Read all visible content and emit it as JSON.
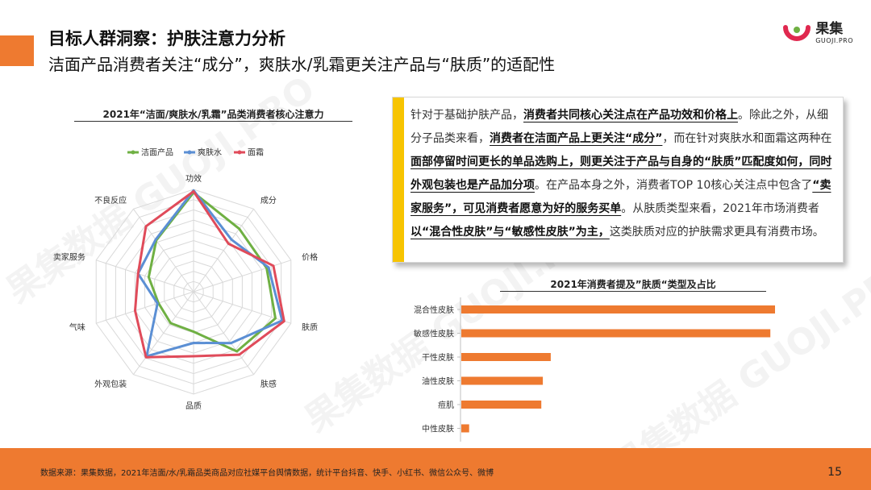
{
  "header": {
    "title": "目标人群洞察：护肤注意力分析",
    "subtitle": "洁面产品消费者关注“成分”，爽肤水/乳霜更关注产品与“肤质”的适配性"
  },
  "logo": {
    "name": "果集",
    "sub": "GUOJI.PRO"
  },
  "watermark": "果集数据 GUOJI.PRO",
  "colors": {
    "accent": "#ee7a30",
    "highlight": "#f7c400",
    "cleanser": "#6fb043",
    "toner": "#5b8fd4",
    "cream": "#e04b5a",
    "bar": "#ee7a30"
  },
  "textbox": {
    "paragraph": [
      {
        "t": "针对于基础护肤产品，",
        "b": false
      },
      {
        "t": "消费者共同核心关注点在产品功效和价格上",
        "b": true
      },
      {
        "t": "。除此之外，从细分子品类来看，",
        "b": false
      },
      {
        "t": "消费者在洁面产品上更关注“成分”",
        "b": true
      },
      {
        "t": "，而在针对爽肤水和面霜这两种在",
        "b": false
      },
      {
        "t": "面部停留时间更长的单品选购上，则更关注于产品与自身的“肤质”匹配度如何，同时外观包装也是产品加分项",
        "b": true
      },
      {
        "t": "。在产品本身之外，消费者TOP 10核心关注点中包含了",
        "b": false
      },
      {
        "t": "“卖家服务”，可见消费者愿意为好的服务买单",
        "b": true
      },
      {
        "t": "。从肤质类型来看，2021年市场消费者",
        "b": false
      },
      {
        "t": "以“混合性皮肤”与“敏感性皮肤”为主，",
        "b": true
      },
      {
        "t": "这类肤质对应的护肤需求更具有消费市场。",
        "b": false
      }
    ]
  },
  "chart_data": [
    {
      "type": "radar",
      "title": "2021年“洁面/爽肤水/乳霜”品类消费者核心注意力",
      "axes": [
        "功效",
        "成分",
        "价格",
        "肤质",
        "肤感",
        "品质",
        "外观包装",
        "气味",
        "卖家服务",
        "不良反应"
      ],
      "max": 10,
      "rings": 10,
      "legend_position": "top",
      "series": [
        {
          "name": "洁面产品",
          "color": "#6fb043",
          "values": [
            9.7,
            7.6,
            7.5,
            8.4,
            7.2,
            3.9,
            3.8,
            3.6,
            4.6,
            6.2
          ]
        },
        {
          "name": "爽肤水",
          "color": "#5b8fd4",
          "values": [
            9.9,
            6.3,
            7.7,
            9.1,
            6.2,
            5.0,
            7.8,
            3.7,
            5.7,
            6.3
          ]
        },
        {
          "name": "面霜",
          "color": "#e04b5a",
          "values": [
            9.8,
            5.8,
            8.2,
            9.3,
            7.6,
            6.3,
            7.9,
            6.0,
            5.7,
            7.9
          ]
        }
      ]
    },
    {
      "type": "bar",
      "orientation": "horizontal",
      "title": "2021年消费者提及”肤质“类型及占比",
      "categories": [
        "混合性皮肤",
        "敏感性皮肤",
        "干性皮肤",
        "油性皮肤",
        "痘肌",
        "中性皮肤"
      ],
      "values": [
        100,
        98.5,
        28.5,
        26,
        25.5,
        2.5
      ],
      "xlim": [
        0,
        100
      ],
      "color": "#ee7a30"
    }
  ],
  "footer": {
    "source": "数据来源：果集数据，2021年洁面/水/乳霜品类商品对应社媒平台舆情数据，统计平台抖音、快手、小红书、微信公众号、微博",
    "page": "15"
  }
}
